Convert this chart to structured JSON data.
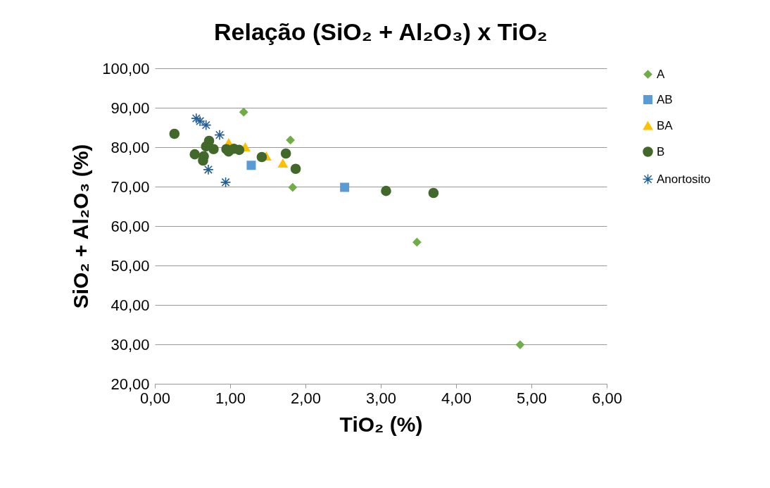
{
  "chart_data": {
    "type": "scatter",
    "title": "Relação (SiO₂ + Al₂O₃) x TiO₂",
    "xlabel": "TiO₂ (%)",
    "ylabel": "SiO₂ + Al₂O₃ (%)",
    "xlim": [
      0,
      6
    ],
    "ylim": [
      20,
      100
    ],
    "xticks": [
      {
        "value": 0,
        "label": "0,00"
      },
      {
        "value": 1,
        "label": "1,00"
      },
      {
        "value": 2,
        "label": "2,00"
      },
      {
        "value": 3,
        "label": "3,00"
      },
      {
        "value": 4,
        "label": "4,00"
      },
      {
        "value": 5,
        "label": "5,00"
      },
      {
        "value": 6,
        "label": "6,00"
      }
    ],
    "yticks": [
      {
        "value": 20,
        "label": "20,00"
      },
      {
        "value": 30,
        "label": "30,00"
      },
      {
        "value": 40,
        "label": "40,00"
      },
      {
        "value": 50,
        "label": "50,00"
      },
      {
        "value": 60,
        "label": "60,00"
      },
      {
        "value": 70,
        "label": "70,00"
      },
      {
        "value": 80,
        "label": "80,00"
      },
      {
        "value": 90,
        "label": "90,00"
      },
      {
        "value": 100,
        "label": "100,00"
      }
    ],
    "grid": "y",
    "legend": "right",
    "series": [
      {
        "name": "A",
        "color": "#70ad47",
        "marker": "diamond",
        "x": [
          1.18,
          1.8,
          1.83,
          3.48,
          4.85
        ],
        "values": [
          88.9,
          81.8,
          69.8,
          55.9,
          29.9
        ]
      },
      {
        "name": "AB",
        "color": "#5b9bd5",
        "marker": "square",
        "x": [
          1.28,
          2.52
        ],
        "values": [
          75.4,
          69.8
        ]
      },
      {
        "name": "BA",
        "color": "#ffc000",
        "marker": "triangle",
        "x": [
          0.98,
          1.2,
          1.48,
          1.7
        ],
        "values": [
          81.1,
          80.0,
          77.7,
          75.9
        ]
      },
      {
        "name": "B",
        "color": "#43682b",
        "marker": "circle",
        "x": [
          0.26,
          0.72,
          0.68,
          0.78,
          0.53,
          0.65,
          0.64,
          0.95,
          0.98,
          1.05,
          1.12,
          1.42,
          1.74,
          1.87,
          3.07,
          3.7
        ],
        "values": [
          83.4,
          81.6,
          80.2,
          79.5,
          78.2,
          77.7,
          76.6,
          79.5,
          78.9,
          79.6,
          79.3,
          77.5,
          78.4,
          74.5,
          68.9,
          68.4
        ]
      },
      {
        "name": "Anortosito",
        "color": "#255e91",
        "marker": "cross",
        "x": [
          0.55,
          0.6,
          0.68,
          0.86,
          0.71,
          0.94
        ],
        "values": [
          87.3,
          86.6,
          85.6,
          83.1,
          74.3,
          71.1
        ]
      }
    ]
  }
}
